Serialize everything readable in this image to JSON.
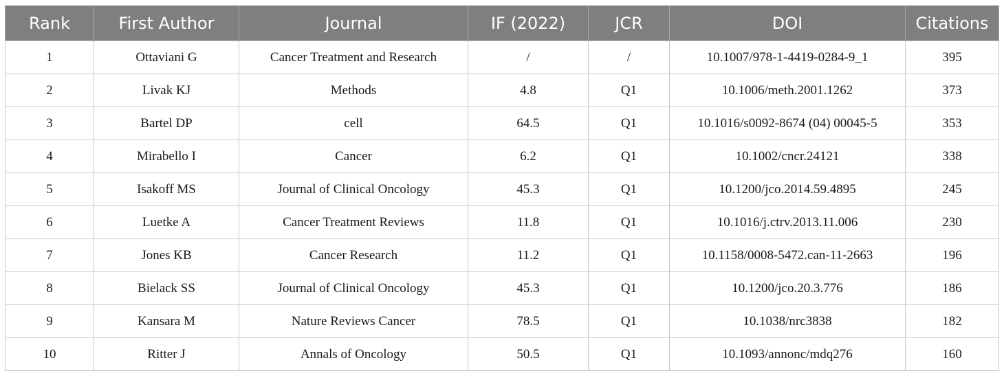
{
  "table": {
    "headers": [
      "Rank",
      "First Author",
      "Journal",
      "IF (2022)",
      "JCR",
      "DOI",
      "Citations"
    ],
    "rows": [
      [
        "1",
        "Ottaviani G",
        "Cancer Treatment and Research",
        "/",
        "/",
        "10.1007/978-1-4419-0284-9_1",
        "395"
      ],
      [
        "2",
        "Livak KJ",
        "Methods",
        "4.8",
        "Q1",
        "10.1006/meth.2001.1262",
        "373"
      ],
      [
        "3",
        "Bartel DP",
        "cell",
        "64.5",
        "Q1",
        "10.1016/s0092-8674 (04) 00045-5",
        "353"
      ],
      [
        "4",
        "Mirabello I",
        "Cancer",
        "6.2",
        "Q1",
        "10.1002/cncr.24121",
        "338"
      ],
      [
        "5",
        "Isakoff MS",
        "Journal of Clinical Oncology",
        "45.3",
        "Q1",
        "10.1200/jco.2014.59.4895",
        "245"
      ],
      [
        "6",
        "Luetke A",
        "Cancer Treatment Reviews",
        "11.8",
        "Q1",
        "10.1016/j.ctrv.2013.11.006",
        "230"
      ],
      [
        "7",
        "Jones KB",
        "Cancer Research",
        "11.2",
        "Q1",
        "10.1158/0008-5472.can-11-2663",
        "196"
      ],
      [
        "8",
        "Bielack SS",
        "Journal of Clinical Oncology",
        "45.3",
        "Q1",
        "10.1200/jco.20.3.776",
        "186"
      ],
      [
        "9",
        "Kansara M",
        "Nature Reviews Cancer",
        "78.5",
        "Q1",
        "10.1038/nrc3838",
        "182"
      ],
      [
        "10",
        "Ritter J",
        "Annals of Oncology",
        "50.5",
        "Q1",
        "10.1093/annonc/mdq276",
        "160"
      ]
    ]
  }
}
